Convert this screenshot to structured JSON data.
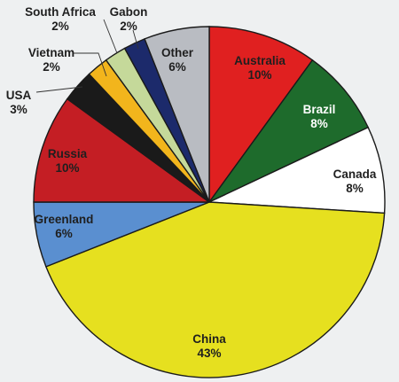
{
  "chart_data": {
    "type": "pie",
    "title": "",
    "slices": [
      {
        "label": "Australia",
        "value": 10,
        "display": "10%",
        "color": "#e02020",
        "label_color": "#1f1f1f"
      },
      {
        "label": "Brazil",
        "value": 8,
        "display": "8%",
        "color": "#1e6b2c",
        "label_color": "#ffffff"
      },
      {
        "label": "Canada",
        "value": 8,
        "display": "8%",
        "color": "#ffffff",
        "label_color": "#1f1f1f"
      },
      {
        "label": "China",
        "value": 43,
        "display": "43%",
        "color": "#e6e01f",
        "label_color": "#1f1f1f"
      },
      {
        "label": "Greenland",
        "value": 6,
        "display": "6%",
        "color": "#5a8fd0",
        "label_color": "#1f1f1f"
      },
      {
        "label": "Russia",
        "value": 10,
        "display": "10%",
        "color": "#c41e24",
        "label_color": "#1f1f1f"
      },
      {
        "label": "USA",
        "value": 3,
        "display": "3%",
        "color": "#1a1a1a",
        "label_color": "#1f1f1f"
      },
      {
        "label": "Vietnam",
        "value": 2,
        "display": "2%",
        "color": "#f2b51c",
        "label_color": "#1f1f1f"
      },
      {
        "label": "South Africa",
        "value": 2,
        "display": "2%",
        "color": "#c5d99a",
        "label_color": "#1f1f1f"
      },
      {
        "label": "Gabon",
        "value": 2,
        "display": "2%",
        "color": "#1c2a6b",
        "label_color": "#1f1f1f"
      },
      {
        "label": "Other",
        "value": 6,
        "display": "6%",
        "color": "#b9bcc2",
        "label_color": "#1f1f1f"
      }
    ]
  }
}
